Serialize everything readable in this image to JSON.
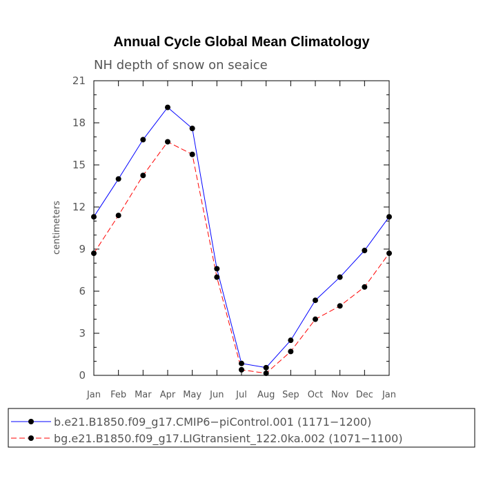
{
  "chart_data": {
    "type": "line",
    "title": "Annual Cycle Global Mean Climatology",
    "subtitle": "NH depth of snow on seaice",
    "ylabel": "centimeters",
    "xlabel": "",
    "categories": [
      "Jan",
      "Feb",
      "Mar",
      "Apr",
      "May",
      "Jun",
      "Jul",
      "Aug",
      "Sep",
      "Oct",
      "Nov",
      "Dec",
      "Jan"
    ],
    "ylim": [
      0,
      21
    ],
    "yticks": [
      0,
      3,
      6,
      9,
      12,
      15,
      18,
      21
    ],
    "grid": false,
    "legend_position": "bottom",
    "series": [
      {
        "name": "b.e21.B1850.f09_g17.CMIP6−piControl.001 (1171−1200)",
        "color": "#0000ff",
        "line_style": "solid",
        "marker": "filled-circle",
        "values": [
          11.3,
          14.0,
          16.8,
          19.1,
          17.6,
          7.6,
          0.85,
          0.55,
          2.5,
          5.35,
          7.0,
          8.9,
          11.3
        ]
      },
      {
        "name": "bg.e21.B1850.f09_g17.LIGtransient_122.0ka.002 (1071−1100)",
        "color": "#ff0000",
        "line_style": "dashed",
        "marker": "filled-circle",
        "values": [
          8.7,
          11.4,
          14.25,
          16.65,
          15.75,
          7.0,
          0.4,
          0.15,
          1.7,
          4.0,
          4.95,
          6.3,
          8.7
        ]
      }
    ]
  }
}
